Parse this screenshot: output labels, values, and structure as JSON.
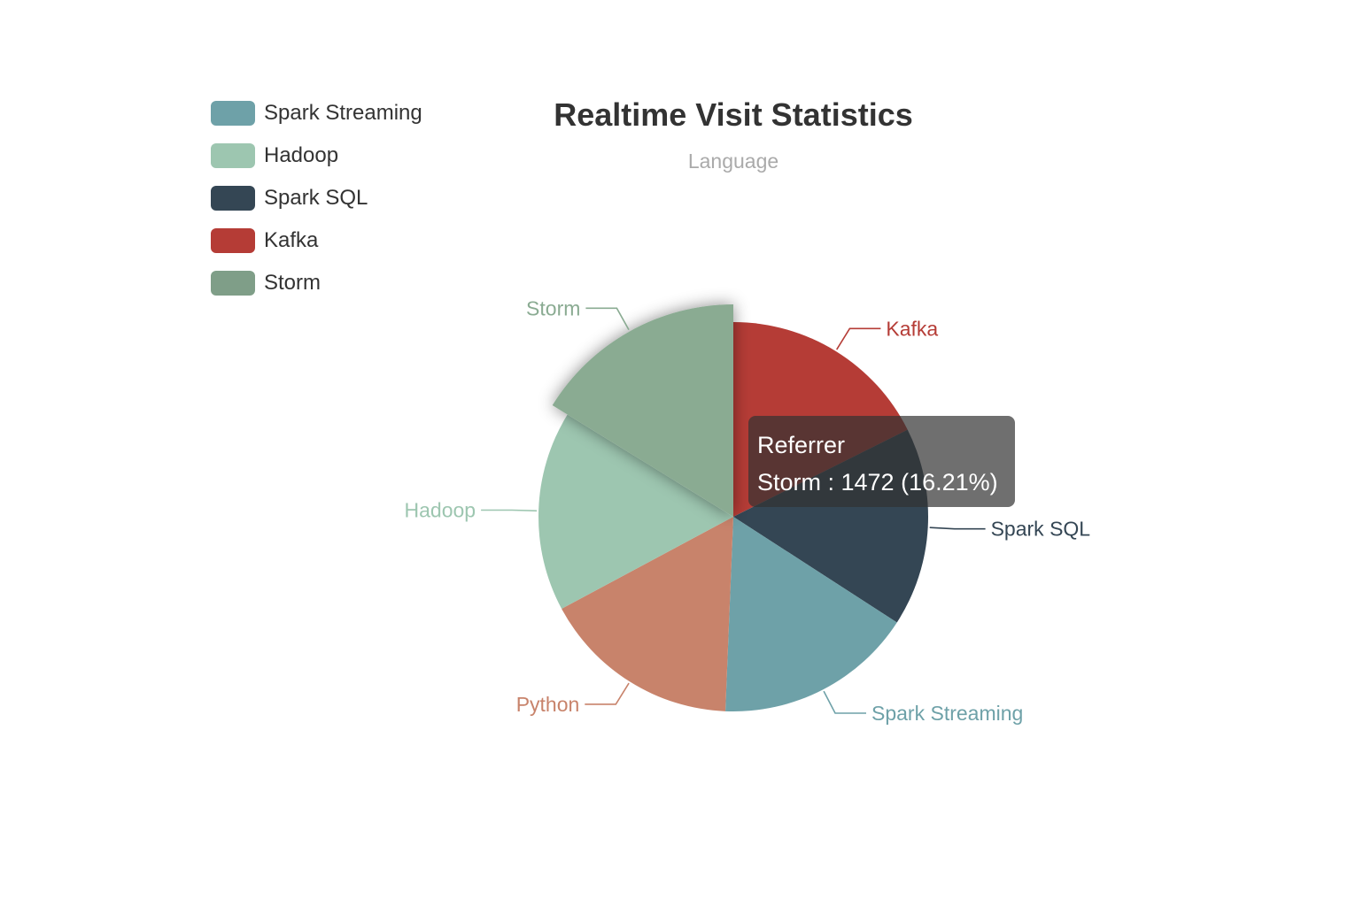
{
  "chart_data": {
    "type": "pie",
    "title": "Realtime Visit Statistics",
    "subtitle": "Language",
    "series_name": "Referrer",
    "legend": [
      "Spark Streaming",
      "Hadoop",
      "Spark SQL",
      "Kafka",
      "Storm"
    ],
    "legend_position": "top-left",
    "slices": [
      {
        "name": "Kafka",
        "value": 1600,
        "color": "#b53c36"
      },
      {
        "name": "Spark SQL",
        "value": 1500,
        "color": "#344654"
      },
      {
        "name": "Spark Streaming",
        "value": 1500,
        "color": "#6ea1a8"
      },
      {
        "name": "Python",
        "value": 1500,
        "color": "#c8836b"
      },
      {
        "name": "Hadoop",
        "value": 1510,
        "color": "#9dc6b0"
      },
      {
        "name": "Storm",
        "value": 1472,
        "color": "#8aab92"
      }
    ],
    "highlighted": "Storm"
  },
  "legend_items": [
    {
      "label": "Spark Streaming",
      "color": "#6ea1a8"
    },
    {
      "label": "Hadoop",
      "color": "#9dc6b0"
    },
    {
      "label": "Spark SQL",
      "color": "#344654"
    },
    {
      "label": "Kafka",
      "color": "#b53c36"
    },
    {
      "label": "Storm",
      "color": "#7f9e88"
    }
  ],
  "tooltip": {
    "series": "Referrer",
    "line": "Storm : 1472 (16.21%)"
  }
}
